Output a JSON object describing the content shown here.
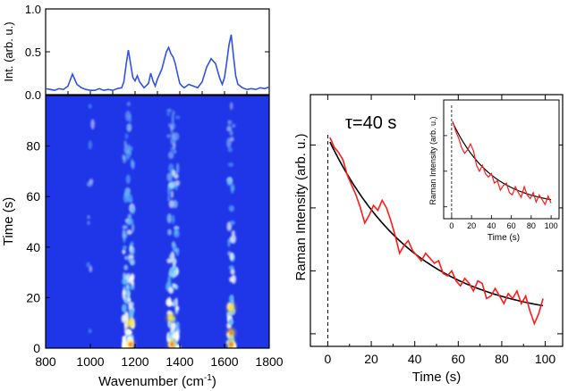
{
  "figure": {
    "colors": {
      "spectrum_line": "#2f52e8",
      "heatmap_bg": "#1f35e8",
      "decay_data": "#ff1a1a",
      "fit": "#000000",
      "axis": "#000000"
    }
  },
  "chart_data": [
    {
      "id": "spectrum",
      "type": "line",
      "title": "",
      "xlabel": "",
      "ylabel": "Int. (arb. u.)",
      "xlim": [
        800,
        1800
      ],
      "ylim": [
        0,
        1.0
      ],
      "yticks": [
        "0.0",
        "0.5",
        "1.0"
      ],
      "x": [
        800,
        820,
        840,
        860,
        880,
        900,
        920,
        940,
        960,
        980,
        1000,
        1020,
        1040,
        1060,
        1080,
        1100,
        1120,
        1140,
        1150,
        1160,
        1170,
        1180,
        1190,
        1200,
        1210,
        1220,
        1240,
        1260,
        1270,
        1280,
        1290,
        1300,
        1320,
        1340,
        1350,
        1360,
        1370,
        1380,
        1390,
        1400,
        1410,
        1420,
        1440,
        1460,
        1480,
        1500,
        1520,
        1540,
        1560,
        1580,
        1590,
        1600,
        1610,
        1620,
        1630,
        1640,
        1650,
        1660,
        1680,
        1700,
        1720,
        1740,
        1760,
        1780,
        1800
      ],
      "values": [
        0.07,
        0.06,
        0.05,
        0.07,
        0.06,
        0.1,
        0.24,
        0.12,
        0.08,
        0.06,
        0.05,
        0.05,
        0.07,
        0.05,
        0.06,
        0.05,
        0.07,
        0.08,
        0.15,
        0.35,
        0.52,
        0.36,
        0.2,
        0.16,
        0.22,
        0.15,
        0.08,
        0.13,
        0.25,
        0.16,
        0.1,
        0.18,
        0.3,
        0.5,
        0.55,
        0.48,
        0.44,
        0.36,
        0.24,
        0.13,
        0.1,
        0.08,
        0.12,
        0.1,
        0.08,
        0.15,
        0.32,
        0.42,
        0.36,
        0.18,
        0.12,
        0.2,
        0.38,
        0.58,
        0.7,
        0.45,
        0.22,
        0.12,
        0.08,
        0.06,
        0.07,
        0.06,
        0.08,
        0.07,
        0.09
      ]
    },
    {
      "id": "time-map",
      "type": "heatmap",
      "xlabel": "Wavenumber (cm",
      "xlabel_sup": "-1",
      "xlabel_close": ")",
      "ylabel": "Time (s)",
      "xlim": [
        800,
        1800
      ],
      "ylim": [
        0,
        100
      ],
      "xticks": [
        "800",
        "1000",
        "1200",
        "1400",
        "1600",
        "1800"
      ],
      "yticks": [
        "0",
        "20",
        "40",
        "60",
        "80"
      ],
      "bands_cm1": [
        1000,
        1160,
        1180,
        1360,
        1380,
        1630
      ],
      "hotspots": [
        {
          "x": 1180,
          "t": 1.5,
          "level": "high"
        },
        {
          "x": 1365,
          "t": 1.5,
          "level": "high"
        },
        {
          "x": 1630,
          "t": 6,
          "level": "high"
        },
        {
          "x": 1630,
          "t": 1.5,
          "level": "high"
        },
        {
          "x": 1360,
          "t": 12,
          "level": "mid"
        },
        {
          "x": 1180,
          "t": 10,
          "level": "mid"
        },
        {
          "x": 1630,
          "t": 16,
          "level": "mid"
        }
      ]
    },
    {
      "id": "decay",
      "type": "line",
      "xlabel": "Time (s)",
      "ylabel": "Raman Intensity (arb. u.)",
      "annotation": "τ=40 s",
      "tau_s": 40,
      "xlim": [
        -8,
        108
      ],
      "ylim": [
        0,
        1.0
      ],
      "xticks": [
        "0",
        "20",
        "40",
        "60",
        "80",
        "100"
      ],
      "marker_line_x": 0,
      "series": [
        {
          "name": "data",
          "x": [
            1,
            3,
            5,
            7,
            9,
            11,
            13,
            15,
            17,
            19,
            21,
            23,
            25,
            27,
            29,
            31,
            33,
            35,
            37,
            39,
            41,
            43,
            45,
            47,
            49,
            51,
            53,
            55,
            57,
            59,
            61,
            63,
            65,
            67,
            69,
            71,
            73,
            75,
            77,
            79,
            81,
            83,
            85,
            87,
            89,
            91,
            93,
            95,
            97,
            99
          ],
          "values": [
            0.83,
            0.79,
            0.77,
            0.74,
            0.68,
            0.64,
            0.6,
            0.55,
            0.49,
            0.52,
            0.56,
            0.54,
            0.58,
            0.55,
            0.5,
            0.44,
            0.37,
            0.4,
            0.42,
            0.38,
            0.36,
            0.34,
            0.37,
            0.35,
            0.33,
            0.34,
            0.29,
            0.28,
            0.3,
            0.26,
            0.24,
            0.27,
            0.25,
            0.22,
            0.26,
            0.25,
            0.19,
            0.2,
            0.23,
            0.2,
            0.17,
            0.21,
            0.19,
            0.22,
            0.17,
            0.2,
            0.14,
            0.09,
            0.13,
            0.19
          ]
        },
        {
          "name": "fit",
          "A": 0.73,
          "y0": 0.1,
          "tau": 40
        }
      ]
    },
    {
      "id": "decay-inset",
      "type": "line",
      "xlabel": "Time (s)",
      "ylabel": "Raman Intensity (arb. u.)",
      "xlim": [
        -8,
        108
      ],
      "ylim": [
        0,
        1.0
      ],
      "xticks": [
        "0",
        "20",
        "40",
        "60",
        "80",
        "100"
      ],
      "marker_line_x": 0,
      "series": [
        {
          "name": "data",
          "x": [
            1,
            4,
            7,
            10,
            13,
            16,
            19,
            22,
            25,
            28,
            31,
            34,
            37,
            40,
            43,
            46,
            49,
            52,
            55,
            58,
            61,
            64,
            67,
            70,
            73,
            76,
            79,
            82,
            85,
            88,
            91,
            94,
            97,
            100
          ],
          "values": [
            0.82,
            0.74,
            0.68,
            0.6,
            0.55,
            0.58,
            0.63,
            0.57,
            0.45,
            0.4,
            0.45,
            0.38,
            0.35,
            0.38,
            0.3,
            0.32,
            0.24,
            0.28,
            0.3,
            0.22,
            0.2,
            0.27,
            0.22,
            0.18,
            0.27,
            0.2,
            0.17,
            0.22,
            0.14,
            0.2,
            0.16,
            0.12,
            0.19,
            0.13
          ]
        },
        {
          "name": "fit",
          "A": 0.73,
          "y0": 0.1,
          "tau": 40
        }
      ]
    }
  ]
}
